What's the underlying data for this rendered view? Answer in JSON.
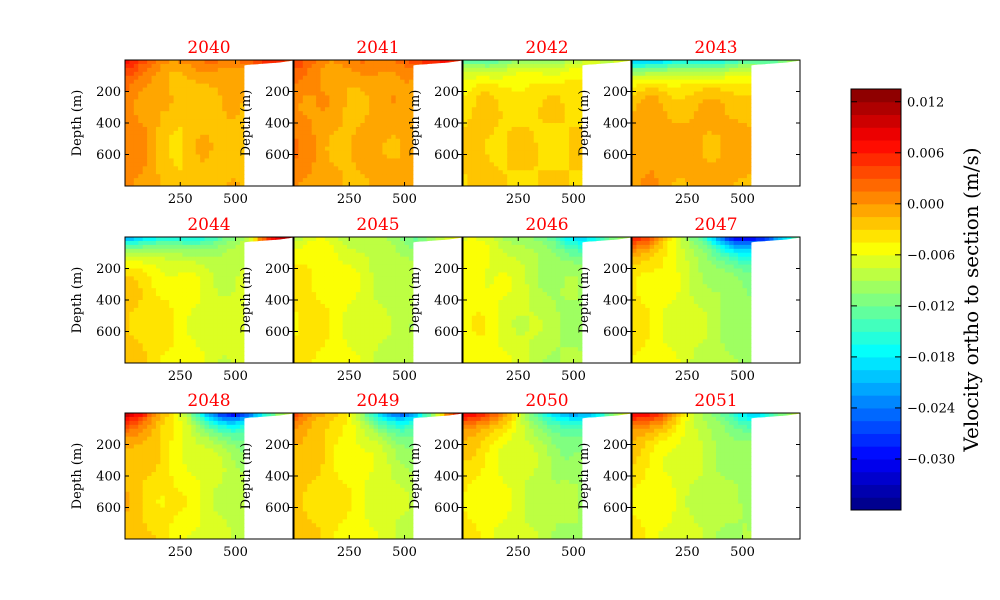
{
  "chart_data": {
    "type": "heatmap",
    "title": "",
    "colormap": "jet",
    "layout": "3 rows x 4 columns of depth-section panels",
    "x_ticks": [
      250,
      500
    ],
    "xlim": [
      0,
      760
    ],
    "y_ticks": [
      200,
      400,
      600
    ],
    "ylim": [
      800,
      0
    ],
    "ylabel": "Depth (m)",
    "xlabel": "",
    "bathymetry": {
      "profile_x": [
        520,
        540,
        560,
        580,
        600,
        620,
        640,
        660,
        680,
        700,
        720,
        740,
        760
      ],
      "profile_depth": [
        40,
        34,
        30,
        28,
        26,
        24,
        22,
        20,
        18,
        16,
        12,
        8,
        4
      ],
      "cliff_x": 540
    },
    "panels": [
      {
        "year": "2040",
        "surface_values": [
          0.008,
          0.003,
          0.002,
          0.001,
          0.001,
          0.001,
          0.002,
          0.002,
          0.003,
          0.005,
          0.006,
          0.004
        ],
        "interior_values": [
          0.001,
          0.0,
          -0.002,
          -0.003,
          -0.002,
          -0.002,
          -0.002,
          -0.003,
          -0.002,
          0.001
        ]
      },
      {
        "year": "2041",
        "surface_values": [
          0.004,
          0.002,
          0.001,
          0.001,
          0.001,
          0.001,
          0.002,
          0.003,
          0.004,
          0.006,
          0.008,
          0.006
        ],
        "interior_values": [
          0.001,
          0.0,
          -0.001,
          -0.002,
          -0.001,
          -0.001,
          -0.001,
          -0.002,
          -0.001,
          0.001
        ]
      },
      {
        "year": "2042",
        "surface_values": [
          -0.015,
          -0.014,
          -0.013,
          -0.012,
          -0.011,
          -0.01,
          -0.01,
          -0.009,
          -0.009,
          -0.008,
          -0.007,
          -0.006
        ],
        "interior_values": [
          -0.003,
          -0.002,
          -0.003,
          -0.003,
          -0.003,
          -0.003,
          -0.003,
          -0.003,
          -0.003,
          0.0
        ]
      },
      {
        "year": "2043",
        "surface_values": [
          -0.022,
          -0.021,
          -0.02,
          -0.019,
          -0.018,
          -0.017,
          -0.017,
          -0.016,
          -0.015,
          -0.014,
          -0.012,
          -0.01
        ],
        "interior_values": [
          -0.001,
          0.0,
          -0.001,
          -0.001,
          -0.001,
          -0.001,
          -0.001,
          -0.002,
          -0.001,
          0.001
        ]
      },
      {
        "year": "2044",
        "surface_values": [
          -0.022,
          -0.02,
          -0.019,
          -0.018,
          -0.017,
          -0.016,
          -0.015,
          -0.012,
          -0.008,
          0.004,
          0.01,
          0.012
        ],
        "interior_values": [
          -0.002,
          -0.003,
          -0.004,
          -0.005,
          -0.006,
          -0.007,
          -0.007,
          -0.008,
          -0.006,
          0.001
        ]
      },
      {
        "year": "2045",
        "surface_values": [
          -0.008,
          -0.007,
          -0.007,
          -0.008,
          -0.008,
          -0.009,
          -0.01,
          -0.011,
          -0.012,
          -0.01,
          -0.008,
          -0.006
        ],
        "interior_values": [
          -0.004,
          -0.004,
          -0.005,
          -0.006,
          -0.007,
          -0.008,
          -0.008,
          -0.009,
          -0.007,
          0.0
        ]
      },
      {
        "year": "2046",
        "surface_values": [
          -0.006,
          -0.007,
          -0.008,
          -0.009,
          -0.01,
          -0.012,
          -0.014,
          -0.018,
          -0.02,
          -0.016,
          -0.012,
          -0.008
        ],
        "interior_values": [
          -0.005,
          -0.005,
          -0.006,
          -0.007,
          -0.008,
          -0.009,
          -0.009,
          -0.01,
          -0.008,
          0.0
        ]
      },
      {
        "year": "2047",
        "surface_values": [
          0.006,
          0.004,
          0.0,
          -0.006,
          -0.012,
          -0.018,
          -0.026,
          -0.032,
          -0.033,
          -0.028,
          -0.02,
          -0.012
        ],
        "interior_values": [
          -0.004,
          -0.005,
          -0.006,
          -0.007,
          -0.008,
          -0.009,
          -0.01,
          -0.01,
          -0.008,
          0.0
        ]
      },
      {
        "year": "2048",
        "surface_values": [
          0.01,
          0.008,
          0.002,
          -0.004,
          -0.01,
          -0.018,
          -0.026,
          -0.032,
          -0.028,
          -0.018,
          -0.01,
          -0.006
        ],
        "interior_values": [
          -0.002,
          -0.003,
          -0.004,
          -0.005,
          -0.006,
          -0.007,
          -0.008,
          -0.009,
          -0.007,
          0.0
        ]
      },
      {
        "year": "2049",
        "surface_values": [
          0.004,
          0.002,
          -0.001,
          -0.004,
          -0.008,
          -0.014,
          -0.022,
          -0.028,
          -0.022,
          -0.01,
          0.002,
          0.01
        ],
        "interior_values": [
          -0.002,
          -0.003,
          -0.004,
          -0.005,
          -0.006,
          -0.007,
          -0.008,
          -0.009,
          -0.007,
          0.0
        ]
      },
      {
        "year": "2050",
        "surface_values": [
          0.01,
          0.008,
          0.003,
          -0.002,
          -0.008,
          -0.014,
          -0.02,
          -0.024,
          -0.022,
          -0.016,
          -0.01,
          -0.006
        ],
        "interior_values": [
          -0.004,
          -0.005,
          -0.006,
          -0.007,
          -0.008,
          -0.009,
          -0.009,
          -0.01,
          -0.008,
          0.0
        ]
      },
      {
        "year": "2051",
        "surface_values": [
          0.01,
          0.008,
          0.004,
          -0.002,
          -0.006,
          -0.01,
          -0.014,
          -0.018,
          -0.02,
          -0.016,
          -0.012,
          -0.008
        ],
        "interior_values": [
          -0.004,
          -0.005,
          -0.006,
          -0.007,
          -0.008,
          -0.009,
          -0.009,
          -0.01,
          -0.008,
          0.0
        ]
      }
    ],
    "colorbar": {
      "label": "Velocity ortho to section (m/s)",
      "vmin": -0.036,
      "vmax": 0.0135,
      "levels": 33,
      "ticks": [
        0.012,
        0.006,
        0.0,
        -0.006,
        -0.012,
        -0.018,
        -0.024,
        -0.03
      ],
      "tick_labels": [
        "0.012",
        "0.006",
        "0.000",
        "−0.006",
        "−0.012",
        "−0.018",
        "−0.024",
        "−0.030"
      ]
    }
  }
}
